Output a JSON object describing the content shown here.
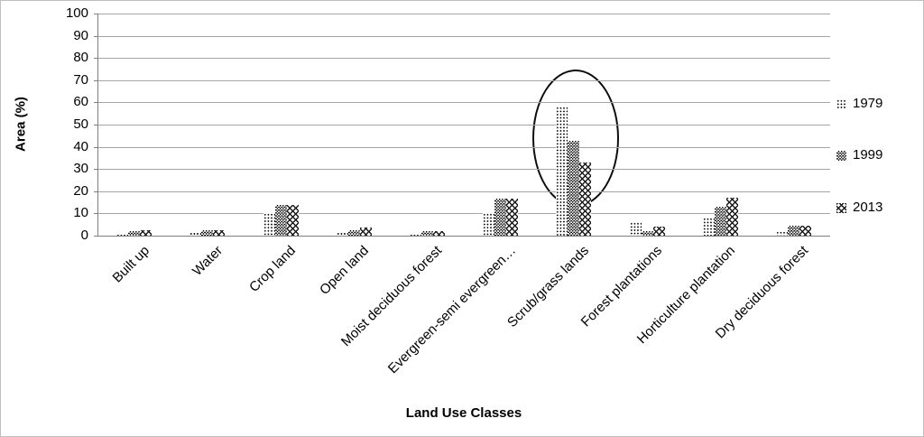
{
  "chart_data": {
    "type": "bar",
    "title": "",
    "xlabel": "Land Use Classes",
    "ylabel": "Area (%)",
    "ylim": [
      0,
      100
    ],
    "yticks": [
      0,
      10,
      20,
      30,
      40,
      50,
      60,
      70,
      80,
      90,
      100
    ],
    "grid": "horizontal",
    "legend_position": "right-outside",
    "categories": [
      "Built up",
      "Water",
      "Crop land",
      "Open land",
      "Moist deciduous forest",
      "Evergreen-semi evergreen…",
      "Scrub/grass lands",
      "Forest plantations",
      "Horticulture plantation",
      "Dry deciduous forest"
    ],
    "series": [
      {
        "name": "1979",
        "pattern": "light-dot",
        "values": [
          1,
          1.5,
          10,
          1.5,
          1,
          10,
          58,
          6,
          8,
          2
        ]
      },
      {
        "name": "1999",
        "pattern": "dark-checker",
        "values": [
          2,
          2.5,
          14,
          2.5,
          2,
          16.5,
          42.5,
          2,
          13,
          4.5
        ]
      },
      {
        "name": "2013",
        "pattern": "gray-lattice",
        "values": [
          2.5,
          2.5,
          14,
          3.5,
          2,
          16.5,
          33,
          4,
          17,
          4.5
        ]
      }
    ],
    "annotation": {
      "shape": "ellipse",
      "highlighted_category": "Scrub/grass lands",
      "color": "#0d0d0d"
    }
  },
  "legend": {
    "items": [
      "1979",
      "1999",
      "2013"
    ]
  },
  "colors": {
    "background": "#ffffff",
    "gridline": "#a6a6a6",
    "axis": "#808080",
    "text": "#000000",
    "border": "#bfbfbf"
  }
}
